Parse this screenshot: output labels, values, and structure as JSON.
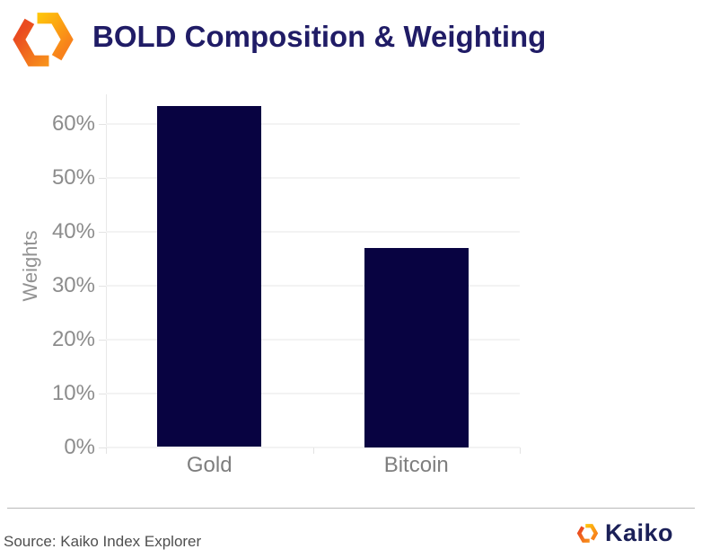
{
  "header": {
    "title": "BOLD Composition & Weighting",
    "logo": "kaiko-hexagon-icon"
  },
  "chart_data": {
    "type": "bar",
    "title": "BOLD Composition & Weighting",
    "categories": [
      "Gold",
      "Bitcoin"
    ],
    "values": [
      63.3,
      37.0
    ],
    "value_unit": "percent",
    "xlabel": "",
    "ylabel": "Weights",
    "ylim": [
      0,
      60
    ],
    "yticks": [
      0,
      10,
      20,
      30,
      40,
      50,
      60
    ],
    "ytick_labels": [
      "0%",
      "10%",
      "20%",
      "30%",
      "40%",
      "50%",
      "60%"
    ],
    "grid": true,
    "legend": false,
    "bar_color": "#080341"
  },
  "footer": {
    "source": "Source: Kaiko Index Explorer",
    "brand_label": "Kaiko"
  },
  "colors": {
    "bar": "#080341",
    "title_text": "#201c66",
    "tick_label": "#8c8c8c",
    "category_label": "#7e7e7e",
    "axis_title": "#929292",
    "grid_line": "#f3f3f3",
    "axis_line": "#e8e8e8",
    "divider": "#b9b9b9",
    "source_text": "#4f4f4f",
    "brand_text": "#1b2058",
    "logo_yellow": "#ffc60a",
    "logo_orange": "#f8821b",
    "logo_red_orange": "#ea4b20"
  }
}
